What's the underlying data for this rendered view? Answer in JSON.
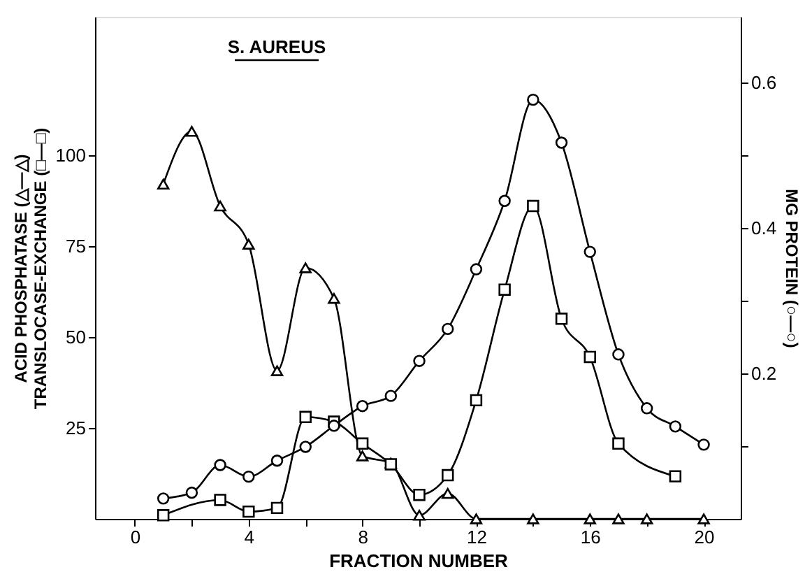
{
  "chart_data": {
    "type": "line",
    "xlabel": "FRACTION NUMBER",
    "ylabel": "ACID PHOSPHATASE (△—△)\nTRANSLOCASE-EXCHANGE (□—□)",
    "y2label": "MG PROTEIN (○—○)",
    "annotations": [
      "S. AUREUS"
    ],
    "xlim": [
      -1.4,
      21.3
    ],
    "xticks": [
      0,
      {
        "value": 2,
        "label": null
      },
      4,
      {
        "value": 6,
        "label": null
      },
      8,
      {
        "value": 10,
        "label": null
      },
      12,
      {
        "value": 14,
        "label": null
      },
      16,
      {
        "value": 18,
        "label": null
      },
      20
    ],
    "ylim": [
      0,
      138
    ],
    "yticks": [
      25,
      50,
      75,
      100
    ],
    "y2lim": [
      0,
      0.69
    ],
    "y2ticks": [
      {
        "value": 0.1,
        "label": null
      },
      0.2,
      {
        "value": 0.3,
        "label": null
      },
      0.4,
      {
        "value": 0.5,
        "label": null
      },
      0.6
    ],
    "grid": false,
    "line_style": "solid",
    "series": [
      {
        "color": "#000000",
        "marker": "triangle",
        "x": [
          1,
          2,
          3,
          4,
          5,
          6,
          7,
          8,
          9,
          10,
          11,
          12,
          14,
          16,
          17,
          18,
          20
        ],
        "values": [
          92,
          106.5,
          86,
          75.5,
          40.7,
          69,
          60.6,
          17.3,
          15.3,
          1,
          7,
          0,
          0,
          0,
          0,
          0,
          0
        ]
      },
      {
        "color": "#000000",
        "marker": "square",
        "x": [
          1,
          3,
          4,
          5,
          6,
          7,
          8,
          9,
          10,
          11,
          12,
          13,
          14,
          15,
          16,
          17,
          19
        ],
        "values": [
          1,
          5.2,
          2,
          3,
          28,
          26.7,
          20.7,
          15,
          6.6,
          12,
          32.6,
          63,
          86,
          55,
          44.5,
          20.7,
          11.7
        ]
      },
      {
        "color": "#000000",
        "marker": "circle",
        "axis": "y2",
        "x": [
          1,
          2,
          3,
          4,
          5,
          6,
          7,
          8,
          9,
          10,
          11,
          12,
          13,
          14,
          15,
          16,
          17,
          18,
          19,
          20
        ],
        "values": [
          0.028,
          0.036,
          0.074,
          0.058,
          0.08,
          0.099,
          0.128,
          0.155,
          0.169,
          0.217,
          0.261,
          0.343,
          0.437,
          0.576,
          0.517,
          0.367,
          0.226,
          0.152,
          0.127,
          0.102
        ]
      }
    ]
  }
}
